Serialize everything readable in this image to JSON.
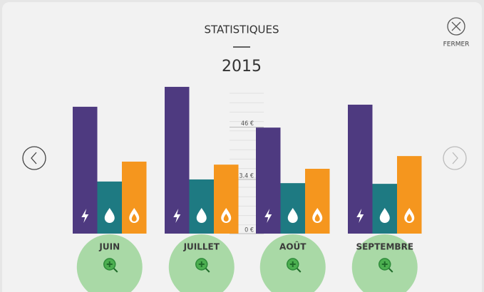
{
  "header": {
    "title": "STATISTIQUES",
    "year": "2015",
    "close_label": "FERMER"
  },
  "chart_data": {
    "type": "bar",
    "categories": [
      "JUIN",
      "JUILLET",
      "AOÛT",
      "SEPTEMBRE"
    ],
    "series": [
      {
        "color": "#4e3a80",
        "values": [
          54.8,
          63.4,
          45.8,
          55.7
        ]
      },
      {
        "color": "#1e7a82",
        "values": [
          22.5,
          23.4,
          21.8,
          21.5
        ]
      },
      {
        "color": "#f5961e",
        "values": [
          31.1,
          29.8,
          28.0,
          33.5
        ]
      }
    ],
    "ylim": [
      0,
      64
    ],
    "yticks": [
      {
        "value": 0,
        "label": "0 €"
      },
      {
        "value": 23.4,
        "label": "23.4 €"
      },
      {
        "value": 46,
        "label": "46 €"
      }
    ]
  }
}
